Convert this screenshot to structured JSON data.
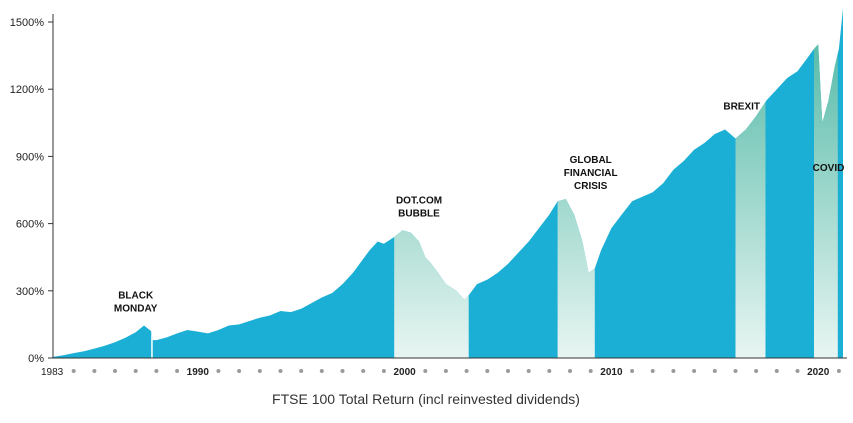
{
  "chart_data": {
    "type": "area",
    "title": "FTSE 100 Total Return (incl reinvested dividends)",
    "ylim": [
      0,
      1500
    ],
    "xlim": [
      1983,
      2021.2
    ],
    "y_ticks": [
      {
        "value": 0,
        "label": "0%"
      },
      {
        "value": 300,
        "label": "300%"
      },
      {
        "value": 600,
        "label": "600%"
      },
      {
        "value": 900,
        "label": "900%"
      },
      {
        "value": 1200,
        "label": "1200%"
      },
      {
        "value": 1500,
        "label": "1500%"
      }
    ],
    "x_labels": [
      {
        "value": 1983,
        "label": "1983"
      },
      {
        "value": 1990,
        "label": "1990"
      },
      {
        "value": 2000,
        "label": "2000"
      },
      {
        "value": 2010,
        "label": "2010"
      },
      {
        "value": 2020,
        "label": "2020"
      }
    ],
    "x_dot_step": 1,
    "colors": {
      "area": "#1bafd6",
      "event_top": "#4fb8a5",
      "event_bottom": "#e8f5f2",
      "axis": "#333333",
      "dots": "#9a9a9a"
    },
    "series": [
      {
        "x": [
          1983.0,
          1983.5,
          1984.0,
          1984.5,
          1985.0,
          1985.5,
          1986.0,
          1986.5,
          1987.0,
          1987.4,
          1987.75,
          1987.82,
          1988.0,
          1988.5,
          1989.0,
          1989.5,
          1990.0,
          1990.5,
          1991.0,
          1991.5,
          1992.0,
          1992.5,
          1993.0,
          1993.5,
          1994.0,
          1994.5,
          1995.0,
          1995.5,
          1996.0,
          1996.5,
          1997.0,
          1997.5,
          1997.9,
          1998.3,
          1998.7,
          1999.0,
          1999.5,
          1999.9,
          2000.3,
          2000.7,
          2001.0,
          2001.3,
          2001.7,
          2002.0,
          2002.5,
          2002.9,
          2003.1,
          2003.5,
          2004.0,
          2004.5,
          2005.0,
          2005.5,
          2006.0,
          2006.5,
          2007.0,
          2007.4,
          2007.8,
          2008.2,
          2008.6,
          2008.9,
          2009.2,
          2009.5,
          2010.0,
          2010.5,
          2011.0,
          2011.5,
          2012.0,
          2012.5,
          2013.0,
          2013.5,
          2014.0,
          2014.5,
          2015.0,
          2015.5,
          2016.0,
          2016.5,
          2017.0,
          2017.5,
          2018.0,
          2018.5,
          2019.0,
          2019.4,
          2019.8,
          2020.0,
          2020.2,
          2020.5,
          2020.8,
          2021.0,
          2021.2
        ],
        "values": [
          5,
          12,
          22,
          30,
          42,
          55,
          70,
          90,
          115,
          145,
          120,
          80,
          80,
          92,
          110,
          125,
          118,
          110,
          125,
          145,
          150,
          165,
          180,
          190,
          210,
          205,
          220,
          245,
          270,
          290,
          330,
          380,
          430,
          480,
          520,
          510,
          540,
          570,
          560,
          520,
          450,
          420,
          370,
          330,
          300,
          260,
          280,
          330,
          350,
          380,
          420,
          470,
          520,
          580,
          640,
          700,
          710,
          640,
          520,
          380,
          400,
          480,
          580,
          640,
          700,
          720,
          740,
          780,
          840,
          880,
          930,
          960,
          1000,
          1020,
          980,
          1020,
          1080,
          1150,
          1200,
          1250,
          1280,
          1330,
          1380,
          1400,
          1050,
          1150,
          1300,
          1380,
          1560
        ]
      }
    ],
    "events": [
      {
        "label_lines": [
          "BLACK",
          "MONDAY"
        ],
        "x_start": 1987.75,
        "x_end": 1987.82,
        "label_x": 1987.0,
        "label_value": 265
      },
      {
        "label_lines": [
          "DOT.COM",
          "BUBBLE"
        ],
        "x_start": 1999.5,
        "x_end": 2003.1,
        "label_x": 2000.7,
        "label_value": 690
      },
      {
        "label_lines": [
          "GLOBAL",
          "FINANCIAL",
          "CRISIS"
        ],
        "x_start": 2007.4,
        "x_end": 2009.2,
        "label_x": 2009.0,
        "label_value": 870
      },
      {
        "label_lines": [
          "BREXIT"
        ],
        "x_start": 2016.0,
        "x_end": 2017.45,
        "label_x": 2016.3,
        "label_value": 1110
      },
      {
        "label_lines": [
          "COVID"
        ],
        "x_start": 2019.8,
        "x_end": 2020.95,
        "label_x": 2020.5,
        "label_value": 835
      }
    ]
  }
}
